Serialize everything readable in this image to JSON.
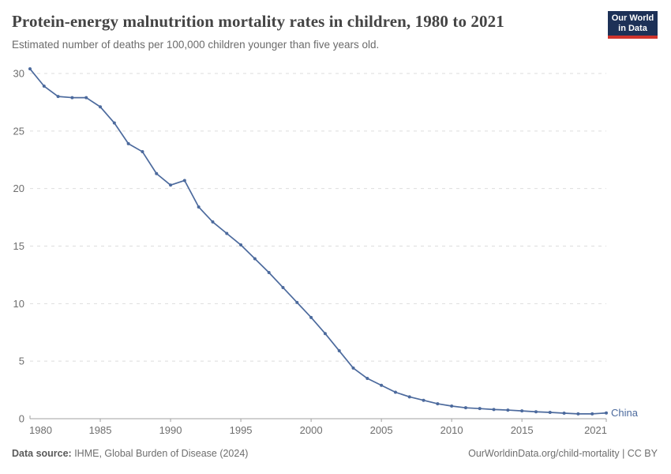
{
  "header": {
    "title": "Protein-energy malnutrition mortality rates in children, 1980 to 2021",
    "subtitle": "Estimated number of deaths per 100,000 children younger than five years old."
  },
  "logo": {
    "line1": "Our World",
    "line2": "in Data",
    "bg_color": "#1d3157",
    "accent_color": "#d0342c"
  },
  "chart_data": {
    "type": "line",
    "title": "Protein-energy malnutrition mortality rates in children, 1980 to 2021",
    "subtitle": "Estimated number of deaths per 100,000 children younger than five years old.",
    "xlabel": "",
    "ylabel": "",
    "xlim": [
      1980,
      2021
    ],
    "ylim": [
      0,
      30.5
    ],
    "x_ticks": [
      1980,
      1985,
      1990,
      1995,
      2000,
      2005,
      2010,
      2015,
      2021
    ],
    "y_ticks": [
      0,
      5,
      10,
      15,
      20,
      25,
      30
    ],
    "grid": "horizontal-dashed",
    "legend_position": "end-of-line-label",
    "series": [
      {
        "name": "China",
        "color": "#4c6a9d",
        "x": [
          1980,
          1981,
          1982,
          1983,
          1984,
          1985,
          1986,
          1987,
          1988,
          1989,
          1990,
          1991,
          1992,
          1993,
          1994,
          1995,
          1996,
          1997,
          1998,
          1999,
          2000,
          2001,
          2002,
          2003,
          2004,
          2005,
          2006,
          2007,
          2008,
          2009,
          2010,
          2011,
          2012,
          2013,
          2014,
          2015,
          2016,
          2017,
          2018,
          2019,
          2020,
          2021
        ],
        "values": [
          30.4,
          28.9,
          28.0,
          27.9,
          27.9,
          27.1,
          25.7,
          23.9,
          23.2,
          21.3,
          20.3,
          20.7,
          18.4,
          17.1,
          16.1,
          15.1,
          13.9,
          12.7,
          11.4,
          10.1,
          8.8,
          7.4,
          5.9,
          4.4,
          3.5,
          2.9,
          2.3,
          1.9,
          1.6,
          1.3,
          1.1,
          0.95,
          0.88,
          0.8,
          0.75,
          0.68,
          0.6,
          0.55,
          0.48,
          0.42,
          0.42,
          0.5
        ]
      }
    ],
    "style": {
      "grid_color": "#dddddd",
      "axis_color": "#a1a1a1",
      "tick_label_color": "#6e6e6e"
    }
  },
  "footer": {
    "source_label": "Data source:",
    "source_text": " IHME, Global Burden of Disease (2024)",
    "link_text": "OurWorldinData.org/child-mortality | CC BY"
  }
}
